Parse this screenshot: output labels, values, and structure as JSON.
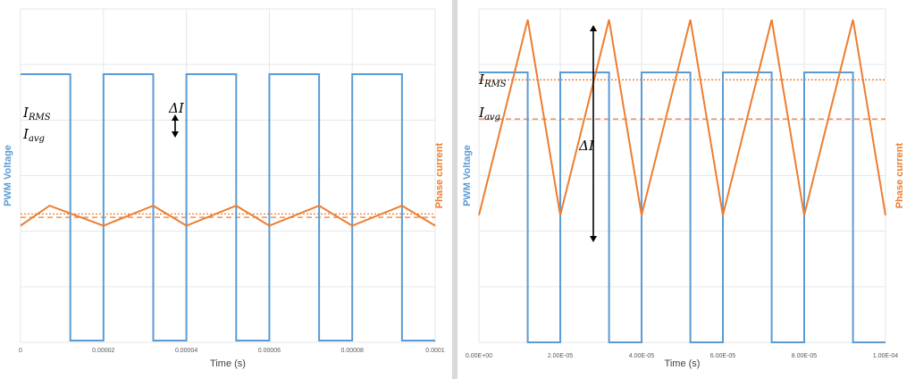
{
  "chart_data": [
    {
      "type": "line",
      "xlabel": "Time (s)",
      "ylabel_left": "PWM Voltage",
      "ylabel_right": "Phase current",
      "xlim": [
        0,
        0.0001
      ],
      "x_ticks": [
        "0",
        "0.00002",
        "0.00004",
        "0.00006",
        "0.00008",
        "0.0001"
      ],
      "grid": true,
      "annotations": {
        "irms": "RMS",
        "iavg": "avg",
        "delta": "ΔI"
      },
      "series": [
        {
          "name": "PWM Voltage",
          "color": "#5b9bd5",
          "x": [
            0,
            1.2e-05,
            1.2e-05,
            2e-05,
            2e-05,
            3.2e-05,
            3.2e-05,
            4e-05,
            4e-05,
            5.2e-05,
            5.2e-05,
            6e-05,
            6e-05,
            7.2e-05,
            7.2e-05,
            8e-05,
            8e-05,
            9.2e-05,
            9.2e-05,
            0.0001
          ],
          "y": [
            1,
            1,
            0,
            0,
            1,
            1,
            0,
            0,
            1,
            1,
            0,
            0,
            1,
            1,
            0,
            0,
            1,
            1,
            0,
            0
          ]
        },
        {
          "name": "Phase current",
          "color": "#ed7d31",
          "x": [
            0,
            7e-06,
            2e-05,
            3.2e-05,
            4e-05,
            5.2e-05,
            6e-05,
            7.2e-05,
            8e-05,
            9.2e-05,
            0.0001
          ],
          "y": [
            0.35,
            0.41,
            0.35,
            0.41,
            0.35,
            0.41,
            0.35,
            0.41,
            0.35,
            0.41,
            0.35
          ]
        }
      ],
      "ref_lines": [
        {
          "name": "I_RMS",
          "color": "#ed7d31",
          "style": "dotted",
          "y": 0.385
        },
        {
          "name": "I_avg",
          "color": "#ed7d31",
          "style": "dashed",
          "y": 0.375
        }
      ]
    },
    {
      "type": "line",
      "xlabel": "Time (s)",
      "ylabel_left": "PWM Voltage",
      "ylabel_right": "Phase current",
      "xlim": [
        0,
        0.0001
      ],
      "x_ticks": [
        "0.00E+00",
        "2.00E-05",
        "4.00E-05",
        "6.00E-05",
        "8.00E-05",
        "1.00E-04"
      ],
      "grid": true,
      "annotations": {
        "irms": "RMS",
        "iavg": "avg",
        "delta": "ΔI"
      },
      "series": [
        {
          "name": "PWM Voltage",
          "color": "#5b9bd5",
          "x": [
            0,
            1.2e-05,
            1.2e-05,
            2e-05,
            2e-05,
            3.2e-05,
            3.2e-05,
            4e-05,
            4e-05,
            5.2e-05,
            5.2e-05,
            6e-05,
            6e-05,
            7.2e-05,
            7.2e-05,
            8e-05,
            8e-05,
            9.2e-05,
            9.2e-05,
            0.0001
          ],
          "y": [
            1,
            1,
            0,
            0,
            1,
            1,
            0,
            0,
            1,
            1,
            0,
            0,
            1,
            1,
            0,
            0,
            1,
            1,
            0,
            0
          ]
        },
        {
          "name": "Phase current",
          "color": "#ed7d31",
          "x": [
            0,
            1.2e-05,
            2e-05,
            3.2e-05,
            4e-05,
            5.2e-05,
            6e-05,
            7.2e-05,
            8e-05,
            9.2e-05,
            0.0001
          ],
          "y": [
            0.35,
            1.0,
            0.35,
            1.0,
            0.35,
            1.0,
            0.35,
            1.0,
            0.35,
            1.0,
            0.35
          ]
        }
      ],
      "ref_lines": [
        {
          "name": "I_RMS",
          "color": "#ed7d31",
          "style": "dotted",
          "y": 0.8
        },
        {
          "name": "I_avg",
          "color": "#ed7d31",
          "style": "dashed",
          "y": 0.67
        }
      ]
    }
  ]
}
